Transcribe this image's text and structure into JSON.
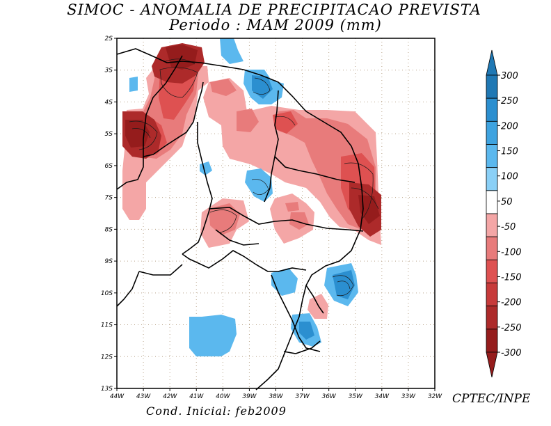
{
  "header": {
    "title": "SIMOC -  ANOMALIA DE PRECIPITACAO PREVISTA",
    "subtitle": "Periodo : MAM 2009 (mm)"
  },
  "map": {
    "lat_labels": [
      "2S",
      "3S",
      "4S",
      "5S",
      "6S",
      "7S",
      "8S",
      "9S",
      "10S",
      "11S",
      "12S",
      "13S"
    ],
    "lon_labels": [
      "44W",
      "43W",
      "42W",
      "41W",
      "40W",
      "39W",
      "38W",
      "37W",
      "36W",
      "35W",
      "34W",
      "33W",
      "32W"
    ]
  },
  "colorbar": {
    "labels": [
      "300",
      "250",
      "200",
      "150",
      "100",
      "50",
      "-50",
      "-100",
      "-150",
      "-200",
      "-250",
      "-300"
    ],
    "colors": [
      "#1f78b4",
      "#2b8fd0",
      "#3ea3e0",
      "#5bb8ee",
      "#8ad0f7",
      "#ffffff",
      "#f4a6a6",
      "#e87b7b",
      "#de5151",
      "#c73a3a",
      "#ad2a2a",
      "#951c1c"
    ]
  },
  "footer": {
    "credit": "CPTEC/INPE",
    "init": "Cond. Inicial: feb2009"
  }
}
